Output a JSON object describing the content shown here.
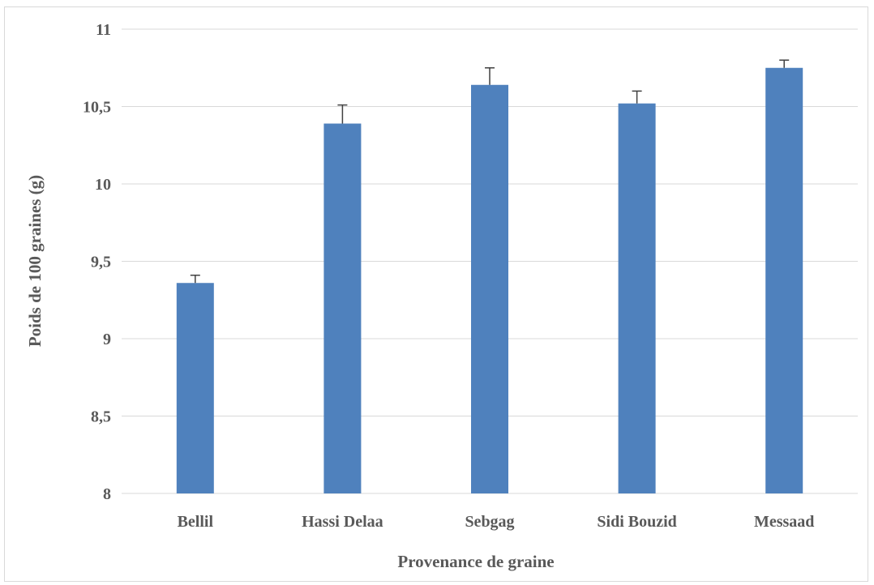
{
  "chart_data": {
    "type": "bar",
    "title": "",
    "xlabel": "Provenance de graine",
    "ylabel": "Poids de 100 graines (g)",
    "categories": [
      "Bellil",
      "Hassi Delaa",
      "Sebgag",
      "Sidi Bouzid",
      "Messaad"
    ],
    "values": [
      9.36,
      10.39,
      10.64,
      10.52,
      10.75
    ],
    "error_bars_upper": [
      0.05,
      0.12,
      0.11,
      0.08,
      0.05
    ],
    "ylim": [
      8,
      11
    ],
    "yticks": [
      8,
      8.5,
      9,
      9.5,
      10,
      10.5,
      11
    ],
    "ytick_labels": [
      "8",
      "8,5",
      "9",
      "9,5",
      "10",
      "10,5",
      "11"
    ],
    "grid": true,
    "legend": "none",
    "bar_color": "#4f81bd",
    "grid_color": "#d9d9d9",
    "text_color": "#595959"
  }
}
